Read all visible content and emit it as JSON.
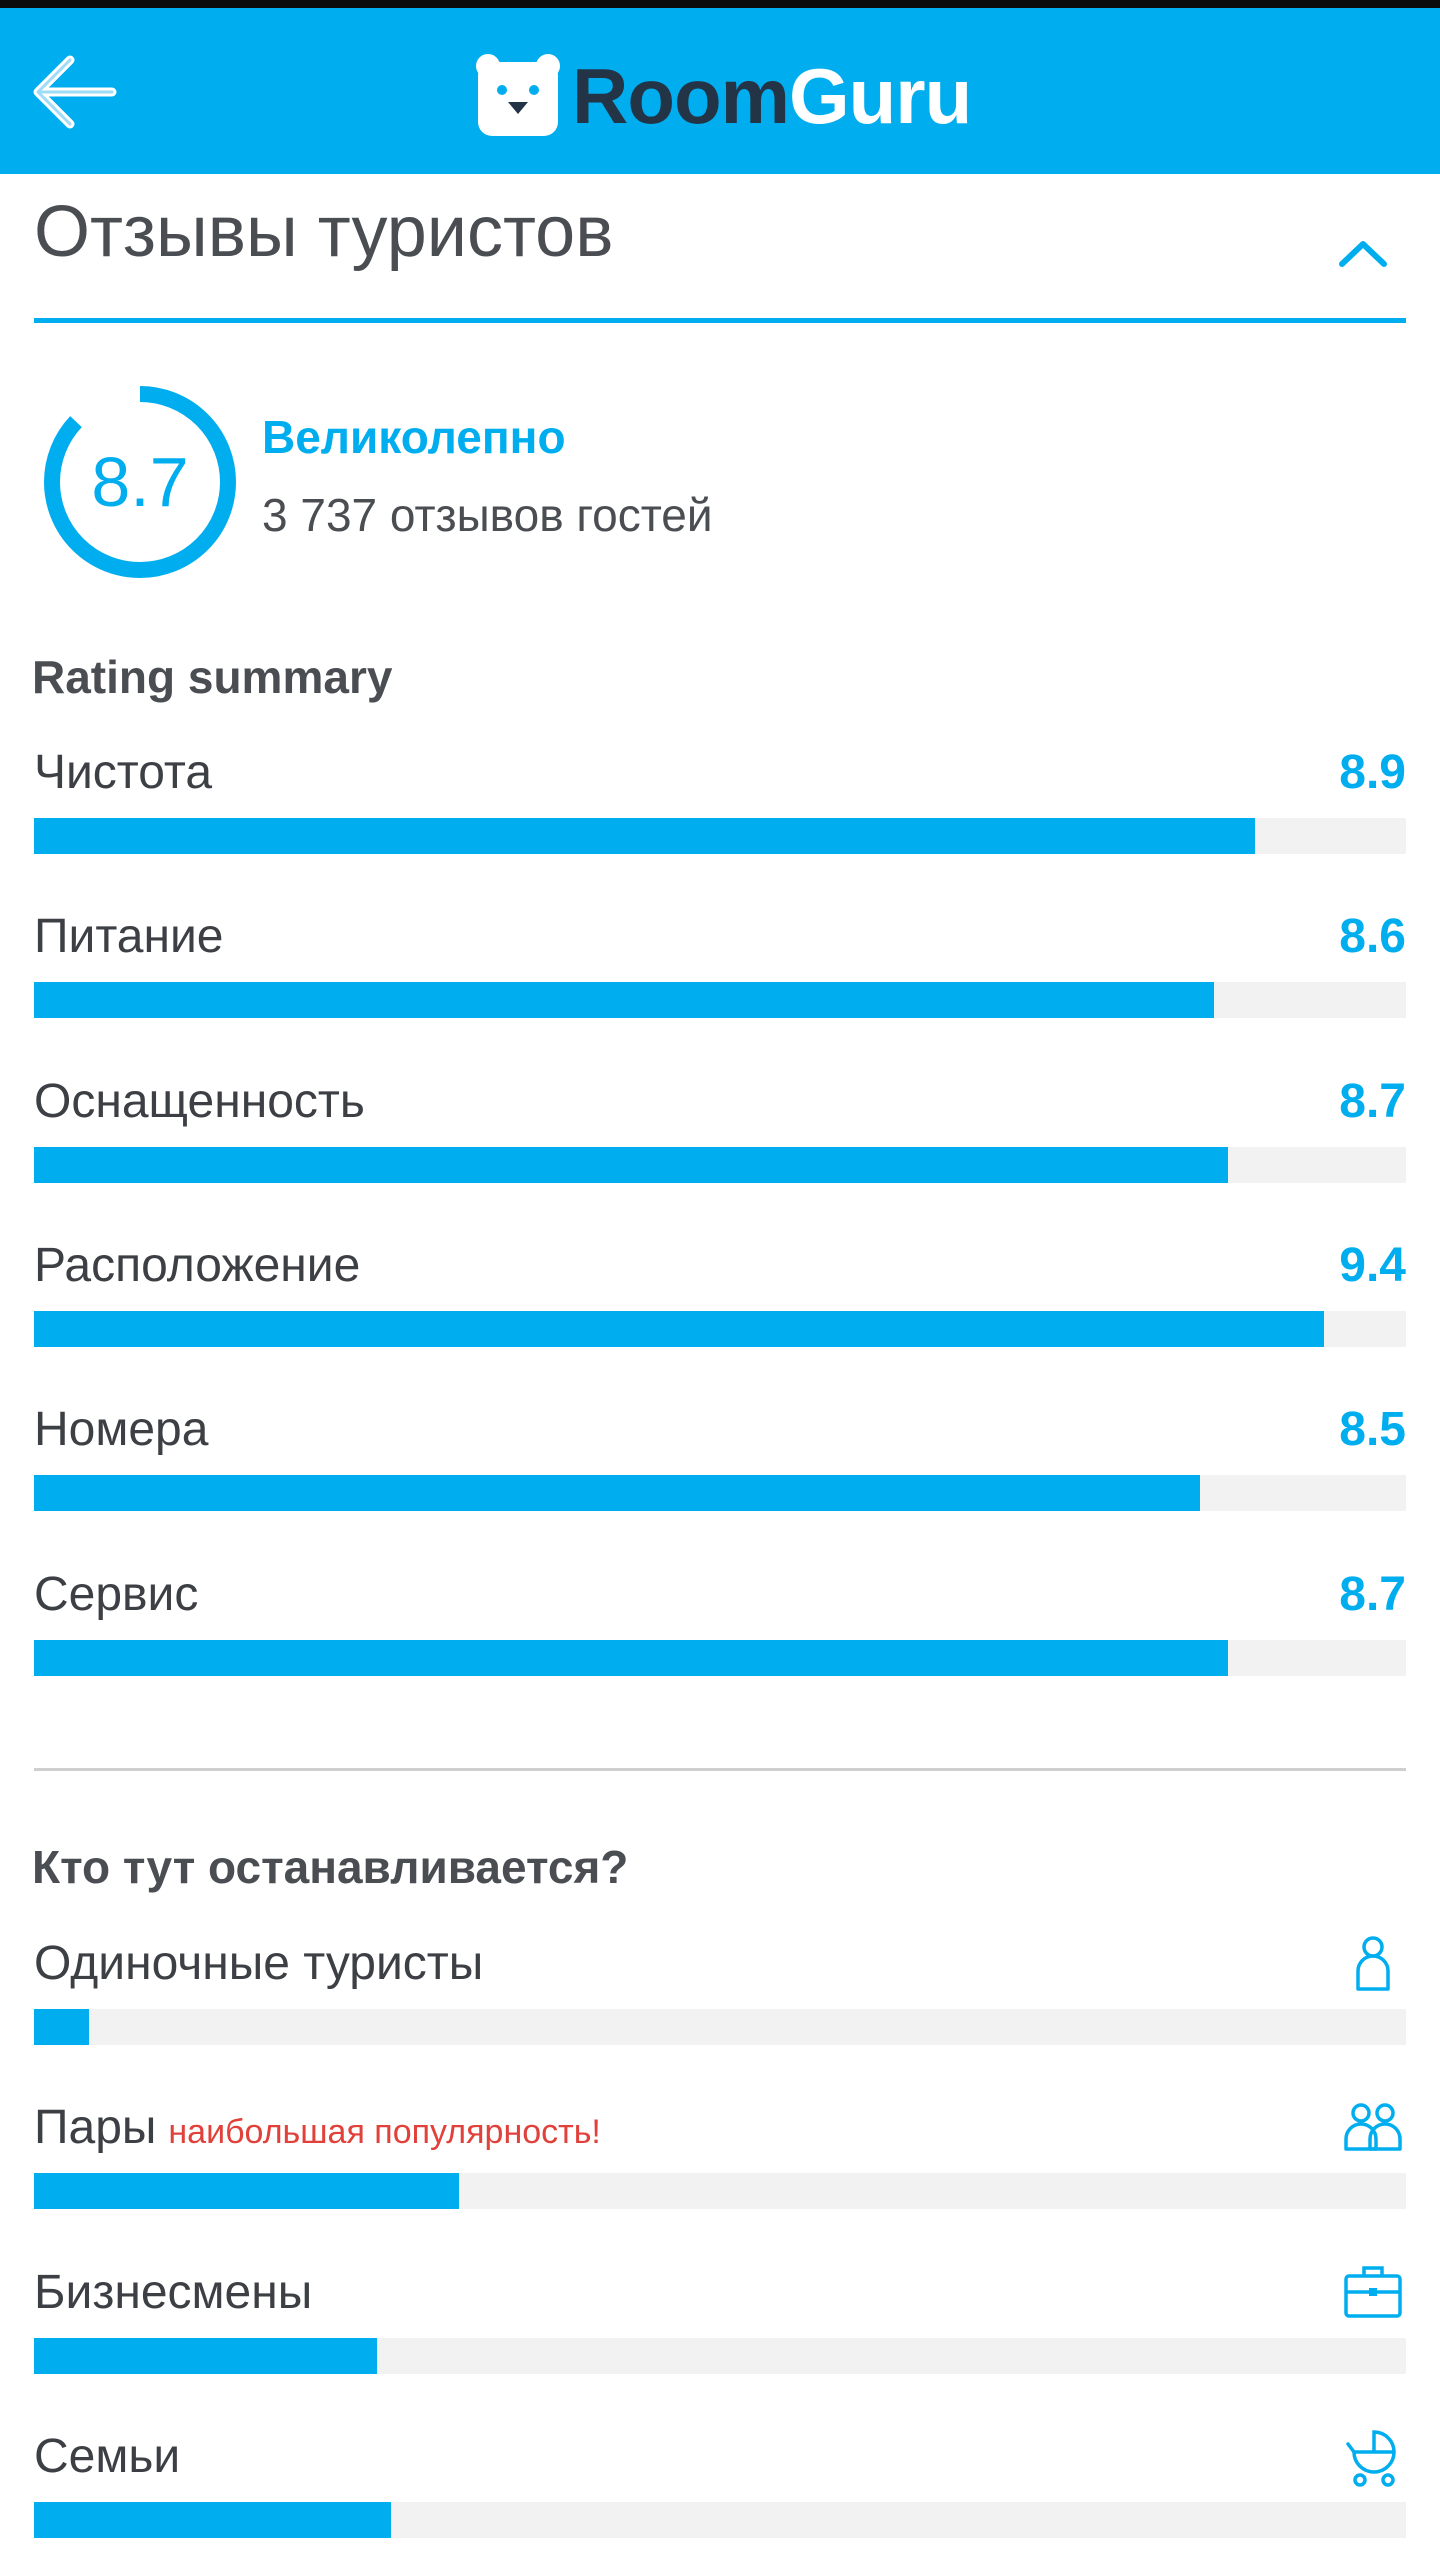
{
  "header": {
    "logo_room": "Room",
    "logo_guru": "Guru"
  },
  "colors": {
    "accent": "#00adee",
    "dark": "#243447",
    "highlight": "#e0413b",
    "track": "#f2f2f2"
  },
  "section": {
    "title": "Отзывы туристов",
    "overall": {
      "score": "8.7",
      "score_fraction": 0.87,
      "label": "Великолепно",
      "reviews": "3 737 отзывов гостей"
    }
  },
  "rating_summary": {
    "heading": "Rating summary",
    "items": [
      {
        "label": "Чистота",
        "value": "8.9",
        "fill": 0.89
      },
      {
        "label": "Питание",
        "value": "8.6",
        "fill": 0.86
      },
      {
        "label": "Оснащенность",
        "value": "8.7",
        "fill": 0.87
      },
      {
        "label": "Расположение",
        "value": "9.4",
        "fill": 0.94
      },
      {
        "label": "Номера",
        "value": "8.5",
        "fill": 0.85
      },
      {
        "label": "Сервис",
        "value": "8.7",
        "fill": 0.87
      }
    ]
  },
  "who_stays": {
    "heading": "Кто тут останавливается?",
    "items": [
      {
        "label": "Одиночные туристы",
        "tag": "",
        "icon": "person-icon",
        "fill": 0.04
      },
      {
        "label": "Пары",
        "tag": "наибольшая популярность!",
        "icon": "couple-icon",
        "fill": 0.31
      },
      {
        "label": "Бизнесмены",
        "tag": "",
        "icon": "briefcase-icon",
        "fill": 0.25
      },
      {
        "label": "Семьи",
        "tag": "",
        "icon": "stroller-icon",
        "fill": 0.26
      }
    ]
  }
}
